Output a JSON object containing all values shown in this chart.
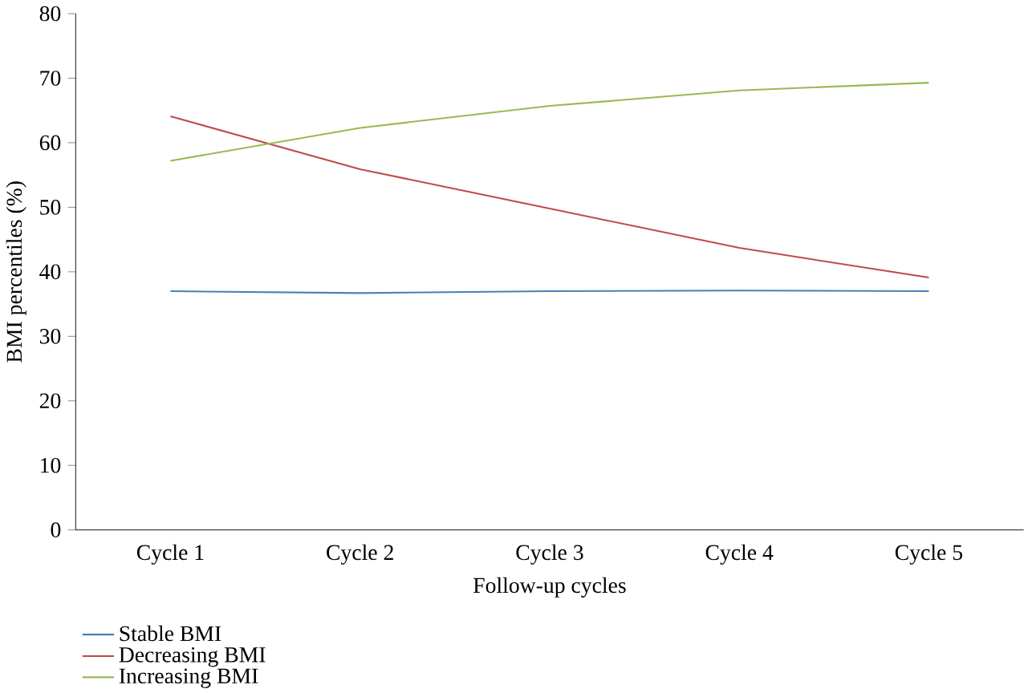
{
  "chart_data": {
    "type": "line",
    "xlabel": "Follow-up cycles",
    "ylabel": "BMI percentiles (%)",
    "categories": [
      "Cycle 1",
      "Cycle 2",
      "Cycle 3",
      "Cycle 4",
      "Cycle 5"
    ],
    "ylim": [
      0,
      80
    ],
    "yticks": [
      0,
      10,
      20,
      30,
      40,
      50,
      60,
      70,
      80
    ],
    "grid": false,
    "legend": "bottom left",
    "marker": "none",
    "line_style": "solid",
    "series": [
      {
        "name": "Stable BMI",
        "color": "#4a7ebb",
        "values": [
          37.0,
          36.7,
          37.0,
          37.1,
          37.0
        ]
      },
      {
        "name": "Decreasing BMI",
        "color": "#be4b48",
        "values": [
          64.1,
          55.9,
          49.8,
          43.7,
          39.1
        ]
      },
      {
        "name": "Increasing BMI",
        "color": "#98b954",
        "values": [
          57.2,
          62.3,
          65.7,
          68.1,
          69.3
        ]
      }
    ]
  }
}
